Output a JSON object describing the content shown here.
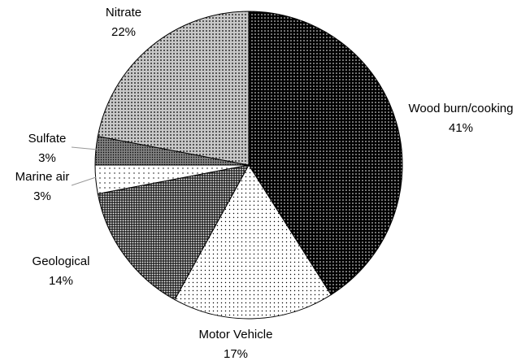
{
  "chart_data": {
    "type": "pie",
    "categories": [
      "Wood burn/cooking",
      "Motor Vehicle",
      "Geological",
      "Marine air",
      "Sulfate",
      "Nitrate"
    ],
    "values": [
      41,
      17,
      14,
      3,
      3,
      22
    ],
    "value_labels": [
      "41%",
      "17%",
      "14%",
      "3%",
      "3%",
      "22%"
    ],
    "colors": [
      "#000000",
      "#ffffff",
      "#2a2a2a",
      "#ffffff",
      "#808080",
      "#c8c8c8"
    ]
  }
}
